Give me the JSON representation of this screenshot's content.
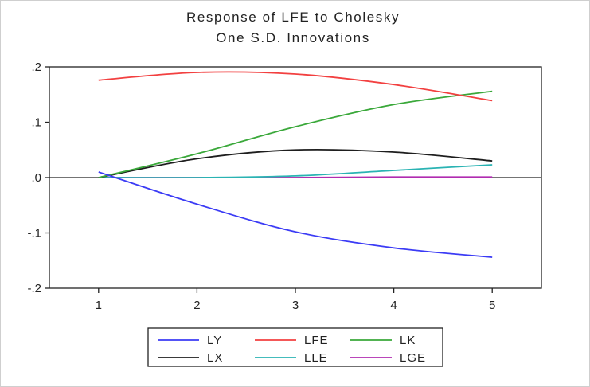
{
  "chart_data": {
    "type": "line",
    "title": [
      "Response of LFE to Cholesky",
      "One S.D. Innovations"
    ],
    "xlabel": "",
    "ylabel": "",
    "x": [
      1,
      2,
      3,
      4,
      5
    ],
    "x_ticks": [
      "1",
      "2",
      "3",
      "4",
      "5"
    ],
    "xlim": [
      0.5,
      5.5
    ],
    "ylim": [
      -0.2,
      0.2
    ],
    "y_ticks": [
      {
        "value": 0.2,
        "label": ".2"
      },
      {
        "value": 0.1,
        "label": ".1"
      },
      {
        "value": 0.0,
        "label": ".0"
      },
      {
        "value": -0.1,
        "label": "-.1"
      },
      {
        "value": -0.2,
        "label": "-.2"
      }
    ],
    "zero_line": true,
    "grid": false,
    "legend_position": "bottom",
    "series": [
      {
        "name": "LY",
        "color": "#3b3bf5",
        "values": [
          0.01,
          -0.048,
          -0.098,
          -0.127,
          -0.144
        ]
      },
      {
        "name": "LFE",
        "color": "#f24040",
        "values": [
          0.176,
          0.19,
          0.187,
          0.168,
          0.139
        ]
      },
      {
        "name": "LK",
        "color": "#3aa83a",
        "values": [
          0.0,
          0.043,
          0.092,
          0.132,
          0.156
        ]
      },
      {
        "name": "LX",
        "color": "#1e1e1e",
        "values": [
          0.0,
          0.034,
          0.05,
          0.046,
          0.03
        ]
      },
      {
        "name": "LLE",
        "color": "#2ab3b3",
        "values": [
          0.0,
          0.0,
          0.003,
          0.013,
          0.023
        ]
      },
      {
        "name": "LGE",
        "color": "#b02cb0",
        "values": [
          0.0,
          0.0,
          0.0,
          0.001,
          0.001
        ]
      }
    ]
  }
}
